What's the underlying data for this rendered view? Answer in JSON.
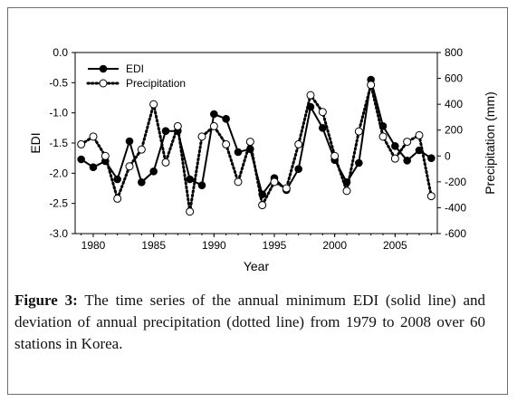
{
  "caption": {
    "label": "Figure 3:",
    "text": " The time series of the annual minimum EDI (solid line) and deviation of annual precipitation (dotted line) from 1979 to 2008 over 60 stations in Korea."
  },
  "chart_data": {
    "type": "line",
    "title": "",
    "xlabel": "Year",
    "ylabel": "EDI",
    "y2label": "Precipitation (mm)",
    "xlim": [
      1979,
      2008
    ],
    "ylim": [
      -3.0,
      0.0
    ],
    "y2lim": [
      -600,
      800
    ],
    "x_ticks": [
      "1980",
      "1985",
      "1990",
      "1995",
      "2000",
      "2005"
    ],
    "y_ticks": [
      "0.0",
      "-0.5",
      "-1.0",
      "-1.5",
      "-2.0",
      "-2.5",
      "-3.0"
    ],
    "y2_ticks": [
      "800",
      "600",
      "400",
      "200",
      "0",
      "-200",
      "-400",
      "-600"
    ],
    "legend_position": "top-left",
    "grid": false,
    "x": [
      1979,
      1980,
      1981,
      1982,
      1983,
      1984,
      1985,
      1986,
      1987,
      1988,
      1989,
      1990,
      1991,
      1992,
      1993,
      1994,
      1995,
      1996,
      1997,
      1998,
      1999,
      2000,
      2001,
      2002,
      2003,
      2004,
      2005,
      2006,
      2007,
      2008
    ],
    "series": [
      {
        "name": "EDI",
        "axis": "left",
        "style": "solid",
        "marker": "filled-circle",
        "color": "#000000",
        "values": [
          -1.77,
          -1.9,
          -1.8,
          -2.1,
          -1.47,
          -2.15,
          -1.97,
          -1.3,
          -1.3,
          -2.1,
          -2.2,
          -1.02,
          -1.1,
          -1.65,
          -1.6,
          -2.35,
          -2.08,
          -2.28,
          -1.93,
          -0.9,
          -1.25,
          -1.78,
          -2.15,
          -1.83,
          -0.45,
          -1.22,
          -1.55,
          -1.79,
          -1.62,
          -1.75
        ]
      },
      {
        "name": "Precipitation",
        "axis": "right",
        "style": "dotted",
        "marker": "open-circle",
        "color": "#000000",
        "values": [
          90,
          150,
          0,
          -330,
          -80,
          50,
          400,
          -50,
          230,
          -430,
          150,
          230,
          90,
          -200,
          110,
          -380,
          -200,
          -250,
          90,
          470,
          340,
          0,
          -270,
          190,
          550,
          150,
          -20,
          110,
          160,
          -310
        ]
      }
    ]
  }
}
